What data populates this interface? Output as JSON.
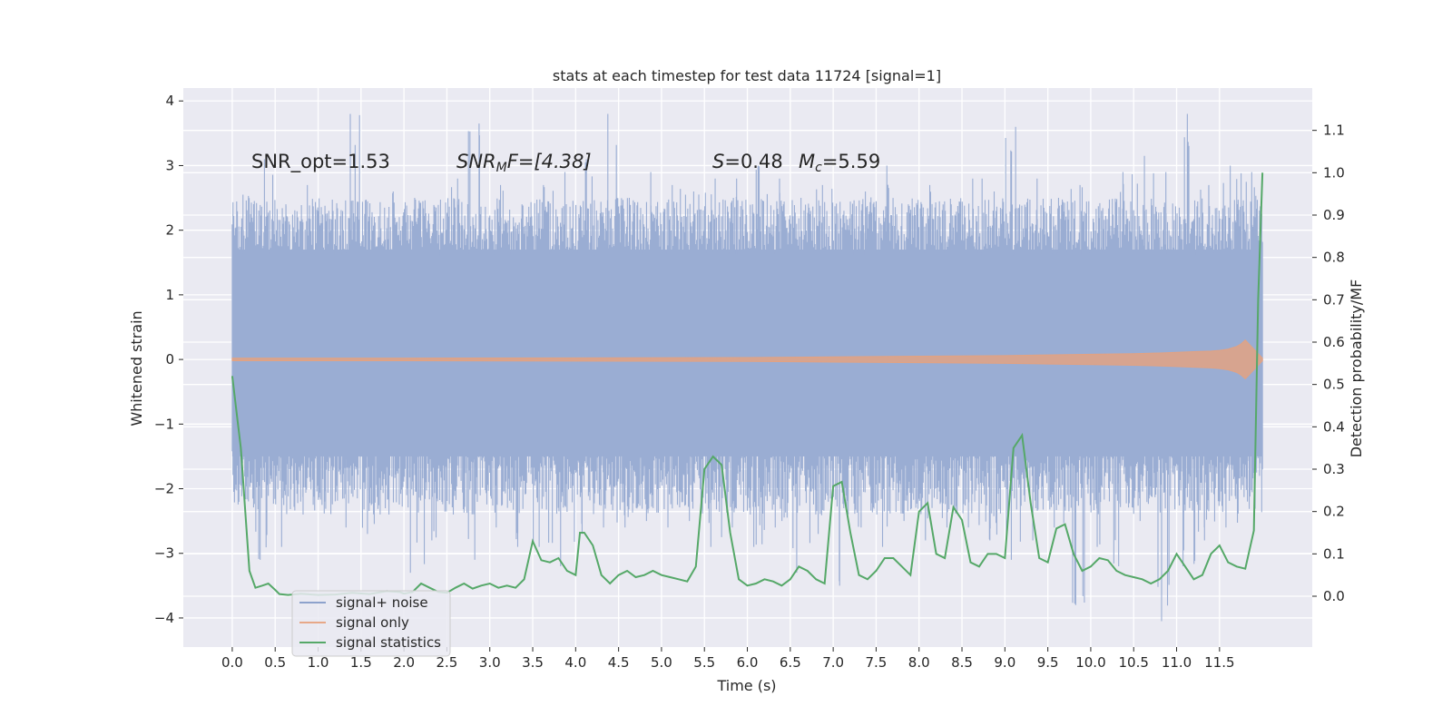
{
  "chart_data": {
    "type": "line",
    "title": "stats at each timestep for test data 11724 [signal=1]",
    "xlabel": "Time (s)",
    "ylabel": "Whitened strain",
    "y2label": "Detection probability/MF",
    "xlim": [
      -0.57,
      12.58
    ],
    "ylim": [
      -4.45,
      4.2
    ],
    "y2lim": [
      -0.12,
      1.2
    ],
    "xticks": [
      0.0,
      0.5,
      1.0,
      1.5,
      2.0,
      2.5,
      3.0,
      3.5,
      4.0,
      4.5,
      5.0,
      5.5,
      6.0,
      6.5,
      7.0,
      7.5,
      8.0,
      8.5,
      9.0,
      9.5,
      10.0,
      10.5,
      11.0,
      11.5
    ],
    "xtick_labels": [
      "0.0",
      "0.5",
      "1.0",
      "1.5",
      "2.0",
      "2.5",
      "3.0",
      "3.5",
      "4.0",
      "4.5",
      "5.0",
      "5.5",
      "6.0",
      "6.5",
      "7.0",
      "7.5",
      "8.0",
      "8.5",
      "9.0",
      "9.5",
      "10.0",
      "10.5",
      "11.0",
      "11.5"
    ],
    "yticks": [
      4,
      3,
      2,
      1,
      0,
      -1,
      -2,
      -3,
      -4
    ],
    "ytick_labels": [
      "4",
      "3",
      "2",
      "1",
      "0",
      "−1",
      "−2",
      "−3",
      "−4"
    ],
    "y2ticks": [
      1.1,
      1.0,
      0.9,
      0.8,
      0.7,
      0.6,
      0.5,
      0.4,
      0.3,
      0.2,
      0.1,
      0.0
    ],
    "y2tick_labels": [
      "1.1",
      "1.0",
      "0.9",
      "0.8",
      "0.7",
      "0.6",
      "0.5",
      "0.4",
      "0.3",
      "0.2",
      "0.1",
      "0.0"
    ],
    "annotations": {
      "snr_opt": "SNR_opt=1.53",
      "snr_mf_main": "SNR",
      "snr_mf_sub": "M",
      "snr_mf_rest": "F=[4.38]",
      "s_sym": "S",
      "s_val": "=0.48",
      "mc_sym": "M",
      "mc_sub": "c",
      "mc_val": "=5.59"
    },
    "noise_series": {
      "name": "signal+ noise",
      "color": "#4c72b0",
      "t_start": 0.0,
      "t_end": 12.0,
      "core_band": [
        -1.5,
        1.7
      ],
      "peak_max": [
        2.55,
        3.1,
        2.4,
        2.7,
        2.3,
        3.8,
        2.2,
        2.6,
        2.5,
        2.1,
        2.8,
        3.65,
        2.7,
        2.4,
        2.7,
        2.9,
        3.1,
        3.8,
        2.5,
        2.9,
        2.7,
        2.6,
        2.8,
        2.8,
        3.0,
        2.8,
        2.5,
        2.7,
        2.3,
        2.6,
        3.0,
        2.4,
        2.7,
        2.4,
        2.8,
        2.6,
        3.6,
        2.8,
        2.5,
        2.7,
        2.3,
        2.9,
        3.15,
        2.9,
        3.8,
        2.7,
        3.0,
        2.9
      ],
      "trough_min": [
        -2.1,
        -3.1,
        -2.9,
        -2.4,
        -2.2,
        -2.6,
        -2.7,
        -2.4,
        -3.3,
        -2.8,
        -2.4,
        -3.1,
        -2.6,
        -2.9,
        -2.9,
        -3.2,
        -2.7,
        -2.6,
        -2.6,
        -2.5,
        -2.6,
        -2.5,
        -2.9,
        -2.6,
        -2.9,
        -2.6,
        -3.3,
        -2.7,
        -3.5,
        -2.6,
        -2.9,
        -2.5,
        -2.8,
        -2.6,
        -2.6,
        -2.8,
        -3.1,
        -2.8,
        -2.6,
        -3.8,
        -2.9,
        -3.2,
        -2.5,
        -4.05,
        -3.2,
        -2.8,
        -2.6,
        -2.2
      ]
    },
    "signal_series": {
      "name": "signal only",
      "color": "#dd8452",
      "x": [
        0.0,
        2.0,
        4.0,
        6.0,
        7.0,
        8.0,
        9.0,
        9.5,
        10.0,
        10.5,
        10.8,
        11.0,
        11.2,
        11.4,
        11.5,
        11.6,
        11.65,
        11.7,
        11.75,
        11.8,
        12.0
      ],
      "amplitude": [
        0.02,
        0.02,
        0.025,
        0.03,
        0.04,
        0.05,
        0.06,
        0.07,
        0.08,
        0.09,
        0.1,
        0.11,
        0.12,
        0.13,
        0.14,
        0.16,
        0.18,
        0.2,
        0.24,
        0.3,
        0.02
      ]
    },
    "stat_series": {
      "name": "signal statistics",
      "color": "#55a868",
      "x": [
        0.0,
        0.1,
        0.2,
        0.27,
        0.35,
        0.42,
        0.5,
        0.55,
        0.65,
        0.8,
        1.0,
        1.2,
        1.4,
        1.6,
        1.8,
        1.95,
        2.0,
        2.1,
        2.2,
        2.3,
        2.4,
        2.5,
        2.6,
        2.7,
        2.8,
        2.9,
        3.0,
        3.1,
        3.2,
        3.3,
        3.4,
        3.5,
        3.6,
        3.7,
        3.8,
        3.9,
        4.0,
        4.05,
        4.1,
        4.2,
        4.3,
        4.4,
        4.5,
        4.6,
        4.7,
        4.8,
        4.9,
        5.0,
        5.1,
        5.2,
        5.3,
        5.4,
        5.5,
        5.6,
        5.7,
        5.8,
        5.9,
        6.0,
        6.1,
        6.2,
        6.3,
        6.4,
        6.5,
        6.6,
        6.7,
        6.8,
        6.9,
        7.0,
        7.1,
        7.2,
        7.3,
        7.4,
        7.5,
        7.6,
        7.7,
        7.8,
        7.9,
        8.0,
        8.1,
        8.2,
        8.3,
        8.4,
        8.5,
        8.6,
        8.7,
        8.8,
        8.9,
        9.0,
        9.1,
        9.2,
        9.3,
        9.4,
        9.5,
        9.6,
        9.7,
        9.8,
        9.9,
        10.0,
        10.1,
        10.2,
        10.3,
        10.4,
        10.5,
        10.6,
        10.7,
        10.8,
        10.9,
        11.0,
        11.1,
        11.2,
        11.3,
        11.4,
        11.5,
        11.6,
        11.7,
        11.8,
        11.9,
        11.95,
        12.0
      ],
      "values": [
        0.52,
        0.35,
        0.06,
        0.02,
        0.025,
        0.03,
        0.015,
        0.005,
        0.003,
        0.006,
        0.003,
        0.004,
        0.008,
        0.005,
        0.012,
        0.01,
        0.006,
        0.01,
        0.03,
        0.02,
        0.01,
        0.008,
        0.02,
        0.03,
        0.018,
        0.025,
        0.03,
        0.02,
        0.025,
        0.02,
        0.04,
        0.13,
        0.085,
        0.08,
        0.09,
        0.06,
        0.05,
        0.15,
        0.15,
        0.12,
        0.05,
        0.03,
        0.05,
        0.06,
        0.045,
        0.05,
        0.06,
        0.05,
        0.045,
        0.04,
        0.035,
        0.07,
        0.3,
        0.33,
        0.31,
        0.15,
        0.04,
        0.025,
        0.03,
        0.04,
        0.035,
        0.025,
        0.04,
        0.07,
        0.06,
        0.04,
        0.03,
        0.26,
        0.27,
        0.15,
        0.05,
        0.04,
        0.06,
        0.09,
        0.09,
        0.07,
        0.05,
        0.2,
        0.22,
        0.1,
        0.09,
        0.21,
        0.18,
        0.08,
        0.07,
        0.1,
        0.1,
        0.09,
        0.35,
        0.38,
        0.22,
        0.09,
        0.08,
        0.16,
        0.17,
        0.1,
        0.06,
        0.07,
        0.09,
        0.085,
        0.06,
        0.05,
        0.045,
        0.04,
        0.03,
        0.04,
        0.06,
        0.1,
        0.07,
        0.04,
        0.05,
        0.1,
        0.12,
        0.08,
        0.07,
        0.065,
        0.155,
        0.7,
        1.0
      ]
    },
    "legend": {
      "position": "lower-left",
      "entries": [
        "signal+ noise",
        "signal only",
        "signal statistics"
      ]
    },
    "grid": true
  }
}
